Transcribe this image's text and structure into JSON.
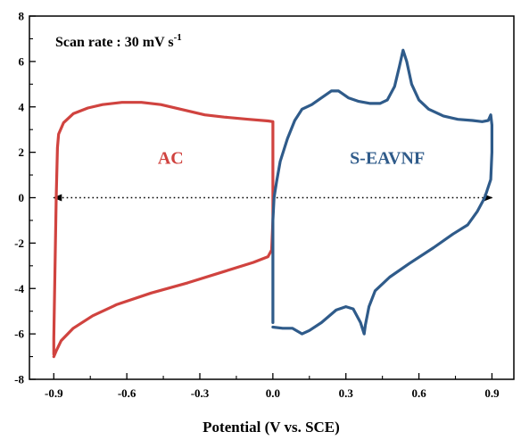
{
  "chart_data": {
    "type": "line",
    "xlabel": "Potential (V vs. SCE)",
    "ylabel": "",
    "xlim": [
      -1.0,
      0.99
    ],
    "ylim": [
      -8,
      8
    ],
    "x_ticks": [
      -0.9,
      -0.6,
      -0.3,
      0.0,
      0.3,
      0.6,
      0.9
    ],
    "x_tick_labels": [
      "-0.9",
      "-0.6",
      "-0.3",
      "0.0",
      "0.3",
      "0.6",
      "0.9"
    ],
    "y_ticks": [
      -8,
      -6,
      -4,
      -2,
      0,
      2,
      4,
      6,
      8
    ],
    "y_tick_labels": [
      "-8",
      "-6",
      "-4",
      "-2",
      "0",
      "2",
      "4",
      "6",
      "8"
    ],
    "grid": false,
    "annotation": {
      "prefix": "Scan rate : 30 mV s",
      "superscript": "-1"
    },
    "series": [
      {
        "name": "AC",
        "color": "#d0433f",
        "label_at": [
          -0.42,
          1.5
        ],
        "points": [
          [
            -0.9,
            -6.9
          ],
          [
            -0.9,
            -6.2
          ],
          [
            -0.895,
            -3.0
          ],
          [
            -0.89,
            0.0
          ],
          [
            -0.885,
            2.2
          ],
          [
            -0.88,
            2.8
          ],
          [
            -0.86,
            3.3
          ],
          [
            -0.82,
            3.7
          ],
          [
            -0.76,
            3.95
          ],
          [
            -0.7,
            4.1
          ],
          [
            -0.62,
            4.2
          ],
          [
            -0.54,
            4.2
          ],
          [
            -0.46,
            4.1
          ],
          [
            -0.36,
            3.85
          ],
          [
            -0.28,
            3.65
          ],
          [
            -0.2,
            3.55
          ],
          [
            -0.1,
            3.45
          ],
          [
            -0.02,
            3.38
          ],
          [
            0.0,
            3.35
          ],
          [
            0.0,
            2.2
          ],
          [
            0.0,
            -1.0
          ],
          [
            -0.005,
            -2.3
          ],
          [
            -0.02,
            -2.6
          ],
          [
            -0.08,
            -2.85
          ],
          [
            -0.2,
            -3.25
          ],
          [
            -0.35,
            -3.75
          ],
          [
            -0.5,
            -4.2
          ],
          [
            -0.64,
            -4.7
          ],
          [
            -0.74,
            -5.2
          ],
          [
            -0.82,
            -5.75
          ],
          [
            -0.87,
            -6.3
          ],
          [
            -0.89,
            -6.75
          ],
          [
            -0.9,
            -7.0
          ]
        ]
      },
      {
        "name": "S-EAVNF",
        "color": "#2f5b8a",
        "label_at": [
          0.47,
          1.5
        ],
        "points": [
          [
            0.0,
            -5.5
          ],
          [
            0.0,
            -3.0
          ],
          [
            0.0,
            -1.0
          ],
          [
            0.005,
            0.0
          ],
          [
            0.015,
            0.7
          ],
          [
            0.03,
            1.6
          ],
          [
            0.06,
            2.6
          ],
          [
            0.09,
            3.4
          ],
          [
            0.12,
            3.9
          ],
          [
            0.16,
            4.1
          ],
          [
            0.2,
            4.4
          ],
          [
            0.24,
            4.7
          ],
          [
            0.27,
            4.7
          ],
          [
            0.31,
            4.4
          ],
          [
            0.35,
            4.25
          ],
          [
            0.4,
            4.15
          ],
          [
            0.44,
            4.15
          ],
          [
            0.47,
            4.3
          ],
          [
            0.5,
            4.9
          ],
          [
            0.52,
            5.8
          ],
          [
            0.535,
            6.5
          ],
          [
            0.55,
            6.0
          ],
          [
            0.57,
            5.0
          ],
          [
            0.6,
            4.3
          ],
          [
            0.64,
            3.9
          ],
          [
            0.7,
            3.6
          ],
          [
            0.76,
            3.45
          ],
          [
            0.82,
            3.4
          ],
          [
            0.86,
            3.35
          ],
          [
            0.885,
            3.4
          ],
          [
            0.895,
            3.65
          ],
          [
            0.9,
            3.2
          ],
          [
            0.9,
            2.0
          ],
          [
            0.895,
            0.8
          ],
          [
            0.87,
            0.0
          ],
          [
            0.84,
            -0.6
          ],
          [
            0.8,
            -1.2
          ],
          [
            0.74,
            -1.6
          ],
          [
            0.66,
            -2.2
          ],
          [
            0.56,
            -2.9
          ],
          [
            0.48,
            -3.5
          ],
          [
            0.42,
            -4.1
          ],
          [
            0.395,
            -4.8
          ],
          [
            0.38,
            -5.6
          ],
          [
            0.375,
            -6.0
          ],
          [
            0.36,
            -5.5
          ],
          [
            0.33,
            -4.9
          ],
          [
            0.3,
            -4.8
          ],
          [
            0.26,
            -4.95
          ],
          [
            0.2,
            -5.5
          ],
          [
            0.15,
            -5.85
          ],
          [
            0.12,
            -6.0
          ],
          [
            0.08,
            -5.75
          ],
          [
            0.04,
            -5.75
          ],
          [
            0.0,
            -5.7
          ]
        ]
      }
    ],
    "reference_line": {
      "style": "dotted-double-arrow",
      "y": 0,
      "x_from": -0.9,
      "x_to": 0.9,
      "color": "#000000"
    }
  }
}
